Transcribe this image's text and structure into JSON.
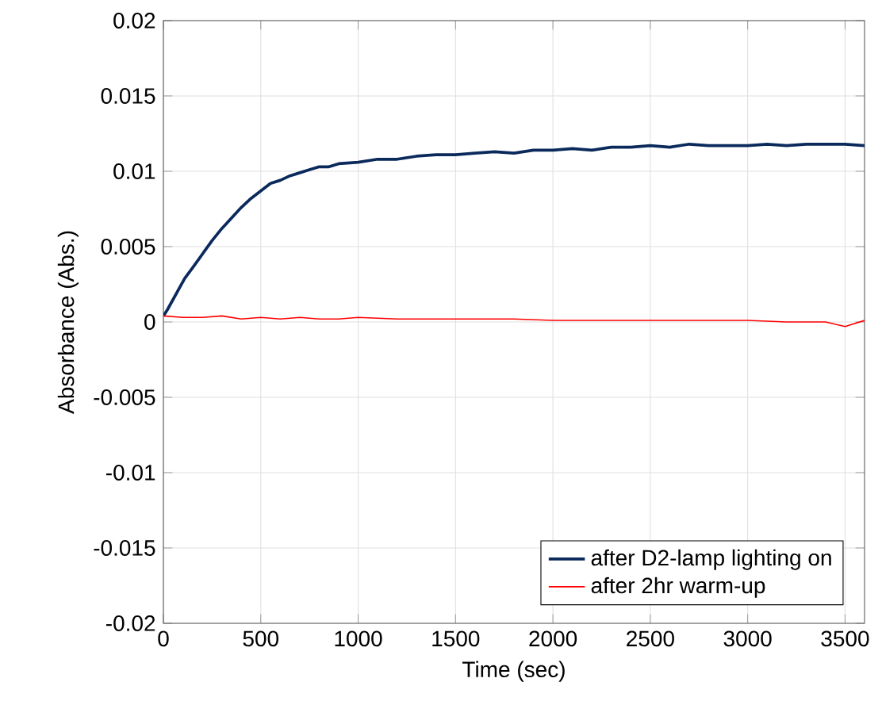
{
  "chart_data": {
    "type": "line",
    "xlabel": "Time (sec)",
    "ylabel": "Absorbance (Abs.)",
    "xlim": [
      0,
      3600
    ],
    "ylim": [
      -0.02,
      0.02
    ],
    "xticks": [
      0,
      500,
      1000,
      1500,
      2000,
      2500,
      3000,
      3500
    ],
    "yticks": [
      -0.02,
      -0.015,
      -0.01,
      -0.005,
      0,
      0.005,
      0.01,
      0.015,
      0.02
    ],
    "grid": true,
    "legend": "bottom right",
    "marker": "none",
    "line_style": "solid",
    "series": [
      {
        "name": "after D2-lamp lighting on",
        "color": "#0b2a5c",
        "x": [
          0,
          20,
          50,
          80,
          110,
          150,
          200,
          250,
          300,
          350,
          400,
          450,
          500,
          550,
          600,
          650,
          700,
          750,
          800,
          850,
          900,
          1000,
          1100,
          1200,
          1300,
          1400,
          1500,
          1600,
          1700,
          1800,
          1900,
          2000,
          2100,
          2200,
          2300,
          2400,
          2500,
          2600,
          2700,
          2800,
          2900,
          3000,
          3100,
          3200,
          3300,
          3400,
          3500,
          3600
        ],
        "values": [
          0.0004,
          0.0008,
          0.0015,
          0.0022,
          0.0029,
          0.0036,
          0.0045,
          0.0054,
          0.0062,
          0.0069,
          0.0076,
          0.0082,
          0.0087,
          0.0092,
          0.0094,
          0.0097,
          0.0099,
          0.0101,
          0.0103,
          0.0103,
          0.0105,
          0.0106,
          0.0108,
          0.0108,
          0.011,
          0.0111,
          0.0111,
          0.0112,
          0.0113,
          0.0112,
          0.0114,
          0.0114,
          0.0115,
          0.0114,
          0.0116,
          0.0116,
          0.0117,
          0.0116,
          0.0118,
          0.0117,
          0.0117,
          0.0117,
          0.0118,
          0.0117,
          0.0118,
          0.0118,
          0.0118,
          0.0117
        ]
      },
      {
        "name": "after 2hr warm-up",
        "color": "#ff0000",
        "x": [
          0,
          100,
          200,
          300,
          400,
          500,
          600,
          700,
          800,
          900,
          1000,
          1200,
          1400,
          1600,
          1800,
          2000,
          2200,
          2400,
          2600,
          2800,
          3000,
          3200,
          3300,
          3400,
          3500,
          3600
        ],
        "values": [
          0.0004,
          0.0003,
          0.0003,
          0.0004,
          0.0002,
          0.0003,
          0.0002,
          0.0003,
          0.0002,
          0.0002,
          0.0003,
          0.0002,
          0.0002,
          0.0002,
          0.0002,
          0.0001,
          0.0001,
          0.0001,
          0.0001,
          0.0001,
          0.0001,
          0.0,
          0.0,
          0.0,
          -0.0003,
          0.0001
        ]
      }
    ]
  }
}
